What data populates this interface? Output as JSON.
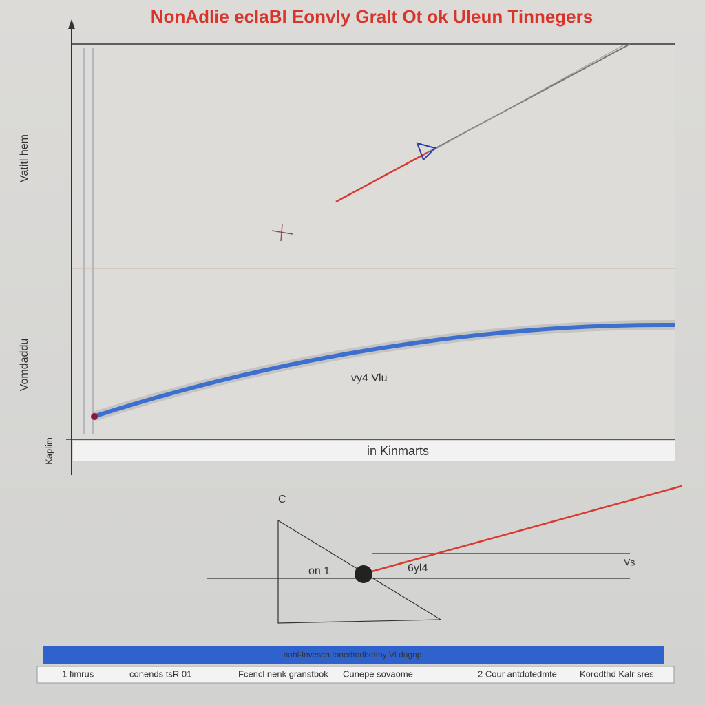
{
  "header": {
    "title": "NonAdlie eclaBl Eonvly Gralt Ot ok Uleun Tinnegers"
  },
  "axes": {
    "y_labels": [
      "Vatitl hem",
      "Vomdaddu",
      "Kaplim"
    ],
    "x_label": "in Kinmarts"
  },
  "plot_labels": [
    "vy4 Vlu",
    "C",
    "on 1",
    "6yl4",
    "Vs"
  ],
  "banner": {
    "text": "nahl-lnvesch tonedtodbettny Vl dugnp"
  },
  "footer": {
    "items": [
      "1 fimrus",
      "conends tsR 01",
      "Fcencl nenk granstbok",
      "Cunepe sovaome",
      "2 Cour antdotedmte",
      "Korodthd Kalr sres"
    ]
  }
}
